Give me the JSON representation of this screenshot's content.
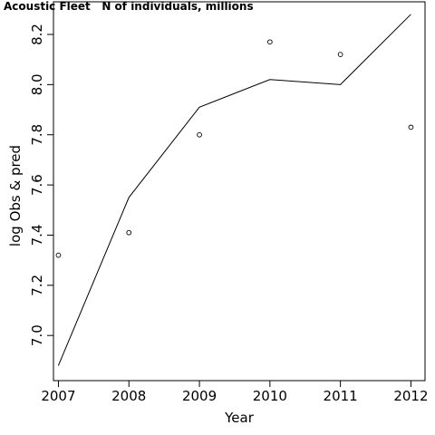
{
  "chart_data": {
    "type": "scatter",
    "title": "Acoustic Fleet   N of individuals, millions",
    "xlabel": "Year",
    "ylabel": "log Obs & pred",
    "xlim": [
      2006.93,
      2012.2
    ],
    "ylim": [
      6.82,
      8.33
    ],
    "xticks": [
      2007,
      2008,
      2009,
      2010,
      2011,
      2012
    ],
    "yticks": [
      7.0,
      7.2,
      7.4,
      7.6,
      7.8,
      8.0,
      8.2
    ],
    "ytick_labels": [
      "7.0",
      "7.2",
      "7.4",
      "7.6",
      "7.8",
      "8.0",
      "8.2"
    ],
    "series": [
      {
        "style": "points",
        "x": [
          2007,
          2008,
          2009,
          2010,
          2011,
          2012
        ],
        "y": [
          7.32,
          7.41,
          7.8,
          8.17,
          8.12,
          7.83
        ]
      },
      {
        "style": "line",
        "x": [
          2007,
          2008,
          2009,
          2010,
          2011,
          2012
        ],
        "y": [
          6.88,
          7.55,
          7.91,
          8.02,
          8.0,
          8.28
        ]
      }
    ],
    "grid": false,
    "legend": "none"
  }
}
